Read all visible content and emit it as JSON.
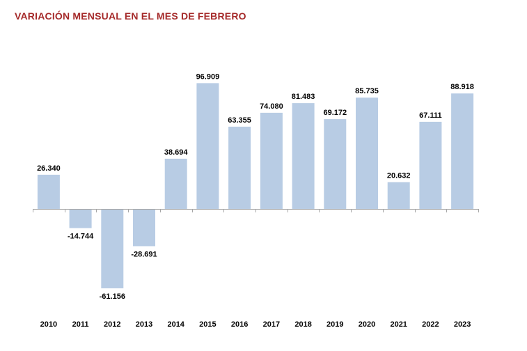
{
  "colors": {
    "title": "#a52a2a",
    "bar": "#b8cce4",
    "axis": "#a6a6a6",
    "text": "#000000"
  },
  "chart_data": {
    "type": "bar",
    "title": "VARIACIÓN MENSUAL EN EL MES DE FEBRERO",
    "xlabel": "",
    "ylabel": "",
    "grid": false,
    "legend": "none",
    "categories": [
      "2010",
      "2011",
      "2012",
      "2013",
      "2014",
      "2015",
      "2016",
      "2017",
      "2018",
      "2019",
      "2020",
      "2021",
      "2022",
      "2023"
    ],
    "values": [
      26340,
      -14744,
      -61156,
      -28691,
      38694,
      96909,
      63355,
      74080,
      81483,
      69172,
      85735,
      20632,
      67111,
      88918
    ],
    "value_labels": [
      "26.340",
      "-14.744",
      "-61.156",
      "-28.691",
      "38.694",
      "96.909",
      "63.355",
      "74.080",
      "81.483",
      "69.172",
      "85.735",
      "20.632",
      "67.111",
      "88.918"
    ],
    "ylim": [
      -61156,
      96909
    ]
  }
}
